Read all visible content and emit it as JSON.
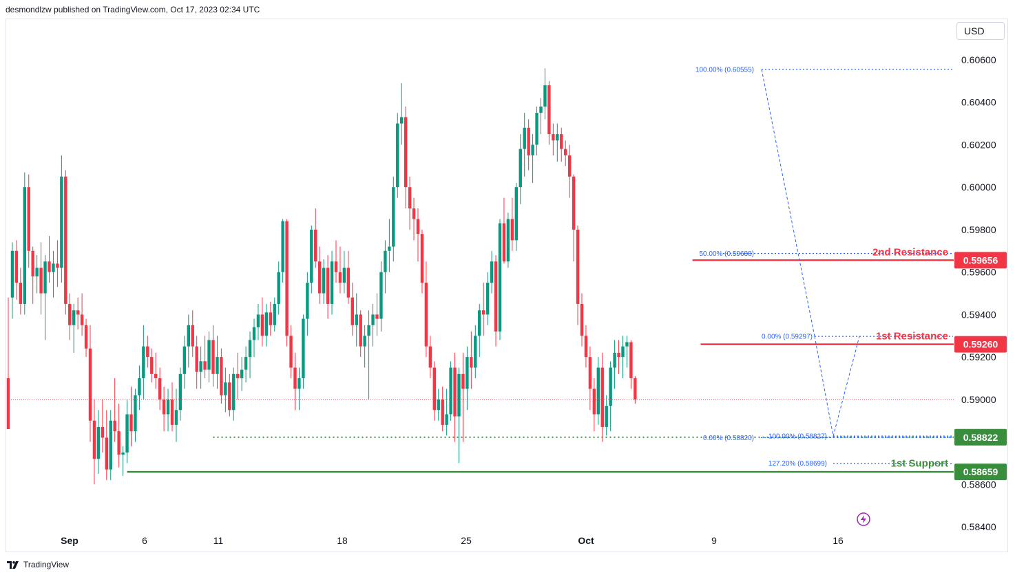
{
  "header": {
    "publisher": "desmondlzw published on TradingView.com, Oct 17, 2023 02:34 UTC"
  },
  "currency_button": "USD",
  "footer": {
    "brand": "TradingView"
  },
  "colors": {
    "up": "#089981",
    "down": "#f23645",
    "support": "#388e3c",
    "fib": "#2962ff",
    "text": "#131722",
    "price_line": "#f23645"
  },
  "icons": {
    "logo": "tradingview-logo-icon",
    "flash": "lightning-icon"
  },
  "chart_data": {
    "type": "candlestick",
    "symbol_currency": "USD",
    "ylim": [
      0.584,
      0.607
    ],
    "y_ticks": [
      "0.60600",
      "0.60400",
      "0.60200",
      "0.60000",
      "0.59800",
      "0.59600",
      "0.59400",
      "0.59200",
      "0.59000",
      "0.58600",
      "0.58400"
    ],
    "x_ticks": [
      {
        "label": "Sep",
        "date": "2023-09-01",
        "bold": true
      },
      {
        "label": "6",
        "date": "2023-09-06"
      },
      {
        "label": "11",
        "date": "2023-09-11"
      },
      {
        "label": "18",
        "date": "2023-09-18"
      },
      {
        "label": "25",
        "date": "2023-09-25"
      },
      {
        "label": "Oct",
        "date": "2023-10-02",
        "bold": true
      },
      {
        "label": "9",
        "date": "2023-10-09"
      },
      {
        "label": "16",
        "date": "2023-10-16"
      }
    ],
    "candles": [
      [
        0.591,
        0.5948,
        0.5888,
        0.5886
      ],
      [
        0.5948,
        0.5974,
        0.5938,
        0.597
      ],
      [
        0.597,
        0.5975,
        0.5947,
        0.5955
      ],
      [
        0.5955,
        0.5962,
        0.594,
        0.5945
      ],
      [
        0.5945,
        0.6007,
        0.594,
        0.6
      ],
      [
        0.6,
        0.6006,
        0.5962,
        0.597
      ],
      [
        0.597,
        0.5972,
        0.5945,
        0.5958
      ],
      [
        0.5958,
        0.5968,
        0.595,
        0.5962
      ],
      [
        0.5962,
        0.5974,
        0.594,
        0.595
      ],
      [
        0.595,
        0.5968,
        0.5928,
        0.5965
      ],
      [
        0.5965,
        0.5977,
        0.5955,
        0.596
      ],
      [
        0.596,
        0.597,
        0.5948,
        0.5964
      ],
      [
        0.5964,
        0.5975,
        0.5953,
        0.5962
      ],
      [
        0.5962,
        0.6015,
        0.5955,
        0.6005
      ],
      [
        0.6005,
        0.6008,
        0.594,
        0.5945
      ],
      [
        0.5945,
        0.595,
        0.5928,
        0.5935
      ],
      [
        0.5935,
        0.5945,
        0.5922,
        0.5942
      ],
      [
        0.5942,
        0.5948,
        0.5933,
        0.594
      ],
      [
        0.594,
        0.595,
        0.593,
        0.5935
      ],
      [
        0.5935,
        0.5938,
        0.592,
        0.5924
      ],
      [
        0.5924,
        0.5935,
        0.588,
        0.589
      ],
      [
        0.589,
        0.59,
        0.586,
        0.5872
      ],
      [
        0.5872,
        0.5895,
        0.5865,
        0.5887
      ],
      [
        0.5887,
        0.59,
        0.5875,
        0.5882
      ],
      [
        0.5882,
        0.5895,
        0.5862,
        0.5867
      ],
      [
        0.5867,
        0.5895,
        0.5862,
        0.589
      ],
      [
        0.589,
        0.591,
        0.588,
        0.5885
      ],
      [
        0.5885,
        0.5898,
        0.5868,
        0.5874
      ],
      [
        0.5874,
        0.5878,
        0.5864,
        0.5875
      ],
      [
        0.5875,
        0.59,
        0.587,
        0.5893
      ],
      [
        0.5893,
        0.5906,
        0.5878,
        0.5885
      ],
      [
        0.5885,
        0.5905,
        0.588,
        0.5902
      ],
      [
        0.5902,
        0.5916,
        0.5895,
        0.591
      ],
      [
        0.591,
        0.5935,
        0.59,
        0.5925
      ],
      [
        0.5925,
        0.593,
        0.5915,
        0.592
      ],
      [
        0.592,
        0.5924,
        0.5908,
        0.5912
      ],
      [
        0.5912,
        0.5922,
        0.5905,
        0.591
      ],
      [
        0.591,
        0.5915,
        0.5895,
        0.59
      ],
      [
        0.59,
        0.5906,
        0.5885,
        0.5893
      ],
      [
        0.5893,
        0.5905,
        0.5885,
        0.59
      ],
      [
        0.59,
        0.5908,
        0.5885,
        0.5888
      ],
      [
        0.5888,
        0.5905,
        0.588,
        0.5895
      ],
      [
        0.5895,
        0.5915,
        0.589,
        0.5912
      ],
      [
        0.5912,
        0.593,
        0.5905,
        0.5925
      ],
      [
        0.5925,
        0.594,
        0.5915,
        0.5935
      ],
      [
        0.5935,
        0.5942,
        0.592,
        0.5925
      ],
      [
        0.5925,
        0.593,
        0.5905,
        0.5913
      ],
      [
        0.5913,
        0.5925,
        0.5905,
        0.5918
      ],
      [
        0.5918,
        0.593,
        0.591,
        0.5914
      ],
      [
        0.5914,
        0.5932,
        0.5908,
        0.5928
      ],
      [
        0.5928,
        0.5935,
        0.5906,
        0.5912
      ],
      [
        0.5912,
        0.593,
        0.5905,
        0.592
      ],
      [
        0.592,
        0.5924,
        0.5898,
        0.5902
      ],
      [
        0.5902,
        0.5915,
        0.5894,
        0.5908
      ],
      [
        0.5908,
        0.5912,
        0.5892,
        0.5895
      ],
      [
        0.5895,
        0.5915,
        0.589,
        0.5912
      ],
      [
        0.5912,
        0.5922,
        0.59,
        0.591
      ],
      [
        0.591,
        0.592,
        0.5904,
        0.5914
      ],
      [
        0.5914,
        0.5925,
        0.5908,
        0.592
      ],
      [
        0.592,
        0.5932,
        0.591,
        0.5928
      ],
      [
        0.5928,
        0.5938,
        0.592,
        0.5934
      ],
      [
        0.5934,
        0.5945,
        0.5928,
        0.594
      ],
      [
        0.594,
        0.5948,
        0.5925,
        0.593
      ],
      [
        0.593,
        0.5945,
        0.5925,
        0.5941
      ],
      [
        0.5941,
        0.5946,
        0.593,
        0.5935
      ],
      [
        0.5935,
        0.5948,
        0.5932,
        0.5945
      ],
      [
        0.5945,
        0.5965,
        0.594,
        0.596
      ],
      [
        0.596,
        0.5985,
        0.5955,
        0.5984
      ],
      [
        0.5984,
        0.5985,
        0.5925,
        0.593
      ],
      [
        0.593,
        0.5935,
        0.591,
        0.5915
      ],
      [
        0.5915,
        0.5922,
        0.5895,
        0.5905
      ],
      [
        0.5905,
        0.5915,
        0.5895,
        0.591
      ],
      [
        0.591,
        0.594,
        0.5905,
        0.5938
      ],
      [
        0.5938,
        0.596,
        0.593,
        0.5955
      ],
      [
        0.5955,
        0.5982,
        0.595,
        0.598
      ],
      [
        0.598,
        0.599,
        0.5962,
        0.5965
      ],
      [
        0.5965,
        0.5972,
        0.5945,
        0.595
      ],
      [
        0.595,
        0.5966,
        0.5945,
        0.5962
      ],
      [
        0.5962,
        0.5968,
        0.5938,
        0.5945
      ],
      [
        0.5945,
        0.597,
        0.594,
        0.5965
      ],
      [
        0.5965,
        0.5975,
        0.5955,
        0.596
      ],
      [
        0.596,
        0.5972,
        0.595,
        0.5955
      ],
      [
        0.5955,
        0.597,
        0.595,
        0.5962
      ],
      [
        0.5962,
        0.597,
        0.5945,
        0.5948
      ],
      [
        0.5948,
        0.5955,
        0.593,
        0.5935
      ],
      [
        0.5935,
        0.595,
        0.5925,
        0.594
      ],
      [
        0.594,
        0.5942,
        0.592,
        0.5925
      ],
      [
        0.5925,
        0.5935,
        0.5915,
        0.593
      ],
      [
        0.593,
        0.5942,
        0.59,
        0.5935
      ],
      [
        0.5935,
        0.5945,
        0.5925,
        0.594
      ],
      [
        0.594,
        0.595,
        0.593,
        0.5938
      ],
      [
        0.5938,
        0.5965,
        0.5932,
        0.596
      ],
      [
        0.596,
        0.5975,
        0.595,
        0.597
      ],
      [
        0.597,
        0.5985,
        0.596,
        0.5972
      ],
      [
        0.5972,
        0.6005,
        0.5965,
        0.6
      ],
      [
        0.6,
        0.6035,
        0.5995,
        0.603
      ],
      [
        0.603,
        0.6049,
        0.602,
        0.6033
      ],
      [
        0.6033,
        0.6038,
        0.599,
        0.6
      ],
      [
        0.6,
        0.6005,
        0.598,
        0.599
      ],
      [
        0.599,
        0.5995,
        0.5975,
        0.5985
      ],
      [
        0.5985,
        0.599,
        0.5965,
        0.5978
      ],
      [
        0.5978,
        0.598,
        0.595,
        0.5955
      ],
      [
        0.5955,
        0.5965,
        0.592,
        0.5925
      ],
      [
        0.5925,
        0.593,
        0.591,
        0.5915
      ],
      [
        0.5915,
        0.5918,
        0.589,
        0.5895
      ],
      [
        0.5895,
        0.5905,
        0.589,
        0.59
      ],
      [
        0.59,
        0.5906,
        0.5885,
        0.5888
      ],
      [
        0.5888,
        0.5905,
        0.5883,
        0.5893
      ],
      [
        0.5893,
        0.5918,
        0.589,
        0.5915
      ],
      [
        0.5915,
        0.5922,
        0.588,
        0.5892
      ],
      [
        0.5892,
        0.5915,
        0.587,
        0.5912
      ],
      [
        0.5912,
        0.5922,
        0.588,
        0.5905
      ],
      [
        0.5905,
        0.5925,
        0.5895,
        0.592
      ],
      [
        0.592,
        0.5932,
        0.5905,
        0.5915
      ],
      [
        0.5915,
        0.5935,
        0.591,
        0.593
      ],
      [
        0.593,
        0.5945,
        0.592,
        0.5942
      ],
      [
        0.5942,
        0.5955,
        0.593,
        0.594
      ],
      [
        0.594,
        0.596,
        0.5935,
        0.5955
      ],
      [
        0.5955,
        0.597,
        0.595,
        0.5965
      ],
      [
        0.5965,
        0.5968,
        0.5925,
        0.5932
      ],
      [
        0.5932,
        0.5985,
        0.5928,
        0.5983
      ],
      [
        0.5983,
        0.5995,
        0.5964,
        0.5965
      ],
      [
        0.5965,
        0.5988,
        0.5962,
        0.5985
      ],
      [
        0.5985,
        0.5995,
        0.597,
        0.5975
      ],
      [
        0.5975,
        0.6002,
        0.597,
        0.6
      ],
      [
        0.6,
        0.6025,
        0.5992,
        0.6018
      ],
      [
        0.6018,
        0.6035,
        0.6005,
        0.6028
      ],
      [
        0.6028,
        0.6032,
        0.6008,
        0.6015
      ],
      [
        0.6015,
        0.6025,
        0.6002,
        0.602
      ],
      [
        0.602,
        0.6038,
        0.6015,
        0.6035
      ],
      [
        0.6035,
        0.6042,
        0.6025,
        0.6038
      ],
      [
        0.6038,
        0.6056,
        0.6032,
        0.6048
      ],
      [
        0.6048,
        0.605,
        0.602,
        0.6025
      ],
      [
        0.6025,
        0.603,
        0.6015,
        0.6022
      ],
      [
        0.6022,
        0.603,
        0.6012,
        0.6025
      ],
      [
        0.6025,
        0.6028,
        0.6012,
        0.6018
      ],
      [
        0.6018,
        0.6022,
        0.601,
        0.6015
      ],
      [
        0.6015,
        0.602,
        0.5995,
        0.6005
      ],
      [
        0.6005,
        0.6006,
        0.5965,
        0.598
      ],
      [
        0.598,
        0.5982,
        0.5935,
        0.5945
      ],
      [
        0.5945,
        0.595,
        0.5925,
        0.593
      ],
      [
        0.593,
        0.5935,
        0.5915,
        0.592
      ],
      [
        0.592,
        0.5925,
        0.5895,
        0.5905
      ],
      [
        0.5905,
        0.591,
        0.5885,
        0.5893
      ],
      [
        0.5893,
        0.592,
        0.5888,
        0.5915
      ],
      [
        0.5915,
        0.5922,
        0.588,
        0.5887
      ],
      [
        0.5887,
        0.5902,
        0.5883,
        0.5897
      ],
      [
        0.5897,
        0.5918,
        0.5885,
        0.5915
      ],
      [
        0.5915,
        0.5928,
        0.5905,
        0.5922
      ],
      [
        0.5922,
        0.5928,
        0.5912,
        0.592
      ],
      [
        0.592,
        0.593,
        0.591,
        0.5925
      ],
      [
        0.5925,
        0.593,
        0.5915,
        0.5927
      ],
      [
        0.5927,
        0.5928,
        0.5905,
        0.591
      ],
      [
        0.591,
        0.5911,
        0.5898,
        0.59
      ]
    ],
    "levels": [
      {
        "name": "2nd Resistance",
        "value": "0.59656",
        "color": "#f23645"
      },
      {
        "name": "1st Resistance",
        "value": "0.59260",
        "color": "#f23645"
      },
      {
        "name": "1st Support",
        "value": "0.58659",
        "color": "#388e3c"
      }
    ],
    "extra_price_label": {
      "value": "0.58822",
      "color": "#388e3c"
    },
    "fib_labels": [
      {
        "text": "100.00% (0.60555)",
        "price": 0.60555
      },
      {
        "text": "50.00% (0.59688)",
        "price": 0.59688
      },
      {
        "text": "0.00% (0.59297)",
        "price": 0.59297
      },
      {
        "text": "0.00% (0.58820)",
        "price": 0.5882
      },
      {
        "text": "100.00% (0.58827)",
        "price": 0.58827
      },
      {
        "text": "127.20% (0.58699)",
        "price": 0.58699
      }
    ],
    "current_price": 0.59,
    "grid": false,
    "legend": "none"
  }
}
